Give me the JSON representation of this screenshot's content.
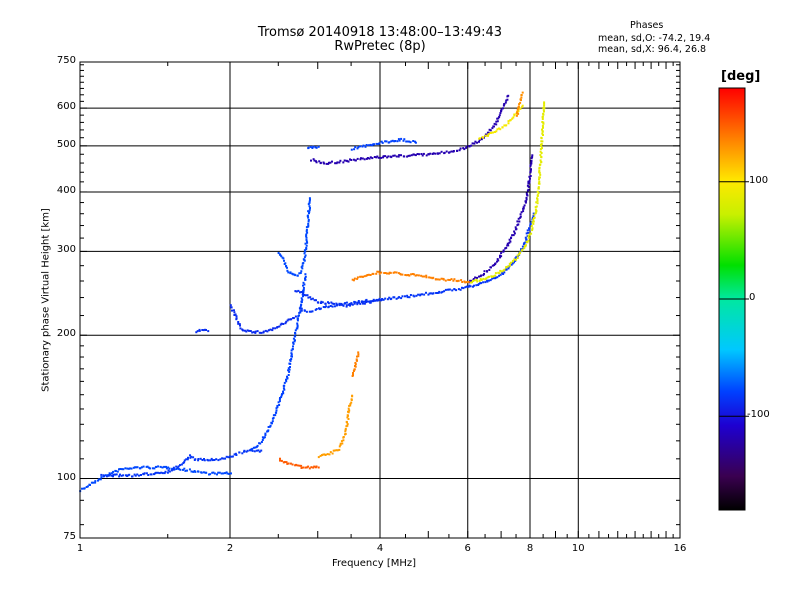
{
  "chart_data": {
    "type": "scatter",
    "title": "Tromsø 20140918 13:48:00–13:49:43",
    "subtitle": "RwPretec (8p)",
    "xlabel": "Frequency [MHz]",
    "ylabel": "Stationary phase Virtual Height [km]",
    "xscale": "log",
    "yscale": "log",
    "xlim": [
      1,
      16
    ],
    "ylim": [
      75,
      750
    ],
    "x_ticks": [
      1,
      2,
      4,
      6,
      8,
      10,
      16
    ],
    "x_tick_labels": [
      "1",
      "2",
      "4",
      "6",
      "8",
      "10",
      "16"
    ],
    "y_ticks": [
      75,
      100,
      200,
      300,
      400,
      500,
      600,
      750
    ],
    "y_tick_labels": [
      "75",
      "100",
      "200",
      "300",
      "400",
      "500",
      "600",
      "750"
    ],
    "grid": true,
    "info": {
      "heading": "Phases",
      "line1": "mean, sd,O: -74.2, 19.4",
      "line2": "mean, sd,X:  96.4, 26.8"
    },
    "colorbar": {
      "label": "[deg]",
      "range": [
        -180,
        180
      ],
      "ticks": [
        100,
        0,
        -100
      ],
      "tick_labels": [
        "100",
        "0",
        "-100"
      ]
    },
    "series": [
      {
        "traces": [
          {
            "x": [
              1.0,
              1.05,
              1.1,
              1.2,
              1.3,
              1.4,
              1.5,
              1.6,
              1.7,
              1.8,
              1.9,
              1.97,
              2.0
            ],
            "y": [
              95,
              98,
              101,
              105,
              106,
              106,
              106,
              105,
              104,
              103,
              103,
              103,
              103
            ],
            "phase": -78
          },
          {
            "x": [
              1.1,
              1.3,
              1.5,
              1.6,
              1.65,
              1.7,
              1.8,
              1.9,
              2.0,
              2.1,
              2.2,
              2.3
            ],
            "y": [
              102,
              102,
              104,
              108,
              112,
              110,
              110,
              110,
              112,
              114,
              115,
              115
            ],
            "phase": -85
          },
          {
            "x": [
              1.7,
              1.75,
              1.8
            ],
            "y": [
              205,
              206,
              205
            ],
            "phase": -88
          },
          {
            "x": [
              2.0,
              2.05,
              2.1,
              2.2,
              2.3,
              2.4,
              2.5,
              2.6,
              2.7
            ],
            "y": [
              232,
              218,
              207,
              204,
              204,
              206,
              210,
              215,
              220
            ],
            "phase": -90
          },
          {
            "x": [
              2.2,
              2.3,
              2.4,
              2.5,
              2.6,
              2.65,
              2.7,
              2.75,
              2.8,
              2.82
            ],
            "y": [
              115,
              120,
              130,
              145,
              165,
              185,
              205,
              225,
              255,
              270
            ],
            "phase": -80
          },
          {
            "x": [
              2.5,
              2.55,
              2.6,
              2.65,
              2.7,
              2.75,
              2.8,
              2.83,
              2.85,
              2.87,
              2.88
            ],
            "y": [
              300,
              290,
              275,
              270,
              268,
              270,
              285,
              310,
              340,
              370,
              390
            ],
            "phase": -78
          },
          {
            "x": [
              2.75,
              2.8,
              2.85,
              2.9,
              2.95,
              3.0,
              3.1,
              3.2,
              3.3,
              3.5,
              3.7,
              4.0,
              4.3,
              4.6,
              5.0,
              5.4,
              5.8,
              6.2,
              6.6,
              7.0,
              7.3,
              7.6,
              7.8,
              8.0,
              8.1
            ],
            "y": [
              228,
              226,
              225,
              226,
              227,
              228,
              230,
              232,
              233,
              235,
              237,
              239,
              241,
              243,
              246,
              249,
              252,
              256,
              262,
              270,
              282,
              300,
              318,
              345,
              362
            ],
            "phase": -85
          },
          {
            "x": [
              2.7,
              2.8,
              2.9,
              3.0,
              3.2,
              3.4,
              3.6,
              3.8,
              4.0
            ],
            "y": [
              250,
              245,
              240,
              236,
              234,
              232,
              234,
              236,
              238
            ],
            "phase": -88
          },
          {
            "x": [
              2.9,
              3.0,
              3.1,
              3.2,
              3.4,
              3.6,
              3.8,
              4.0,
              4.3,
              4.6,
              5.0,
              5.5,
              6.0,
              6.4,
              6.8,
              7.0,
              7.2
            ],
            "y": [
              470,
              465,
              462,
              463,
              467,
              470,
              473,
              476,
              478,
              480,
              482,
              488,
              500,
              520,
              560,
              600,
              640
            ],
            "phase": -120
          },
          {
            "x": [
              6.0,
              6.4,
              6.8,
              7.1,
              7.4,
              7.6,
              7.8,
              7.9,
              8.0,
              8.05
            ],
            "y": [
              260,
              270,
              285,
              305,
              330,
              355,
              380,
              410,
              450,
              480
            ],
            "phase": -120
          },
          {
            "x": [
              3.5,
              3.8,
              4.1,
              4.4,
              4.7
            ],
            "y": [
              495,
              505,
              512,
              518,
              510
            ],
            "phase": -80
          },
          {
            "x": [
              2.85,
              3.0
            ],
            "y": [
              497,
              500
            ],
            "phase": -80
          }
        ]
      },
      {
        "traces": [
          {
            "x": [
              6.0,
              6.3,
              6.6,
              6.9,
              7.2,
              7.5,
              7.8,
              8.0,
              8.2,
              8.3,
              8.4,
              8.5
            ],
            "y": [
              260,
              262,
              266,
              272,
              280,
              292,
              310,
              330,
              370,
              420,
              500,
              620
            ],
            "phase": 85
          },
          {
            "x": [
              6.3,
              6.6,
              6.9,
              7.2,
              7.5,
              7.7
            ],
            "y": [
              520,
              530,
              545,
              560,
              590,
              610
            ],
            "phase": 95
          },
          {
            "x": [
              7.5,
              7.6,
              7.7
            ],
            "y": [
              580,
              620,
              650
            ],
            "phase": 130
          },
          {
            "x": [
              3.5,
              3.7,
              3.9,
              4.2,
              4.5,
              4.8,
              5.1,
              5.4,
              5.7,
              6.0
            ],
            "y": [
              262,
              268,
              272,
              272,
              270,
              268,
              265,
              263,
              262,
              260
            ],
            "phase": 135
          },
          {
            "x": [
              2.5,
              2.6,
              2.7,
              2.8,
              2.9,
              3.0
            ],
            "y": [
              110,
              108,
              107,
              106,
              106,
              106
            ],
            "phase": 148
          },
          {
            "x": [
              3.0,
              3.1,
              3.2,
              3.3,
              3.4,
              3.45,
              3.5
            ],
            "y": [
              112,
              113,
              114,
              116,
              125,
              140,
              150
            ],
            "phase": 125
          },
          {
            "x": [
              3.5,
              3.55,
              3.6
            ],
            "y": [
              165,
              172,
              185
            ],
            "phase": 135
          }
        ]
      }
    ]
  }
}
